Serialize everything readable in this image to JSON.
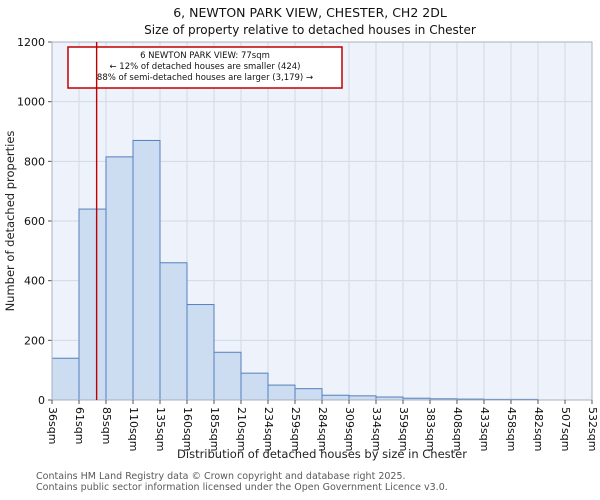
{
  "chart_data": {
    "type": "bar",
    "title": "6, NEWTON PARK VIEW, CHESTER, CH2 2DL",
    "subtitle": "Size of property relative to detached houses in Chester",
    "xlabel": "Distribution of detached houses by size in Chester",
    "ylabel": "Number of detached properties",
    "ylim": [
      0,
      1200
    ],
    "yticks": [
      0,
      200,
      400,
      600,
      800,
      1000,
      1200
    ],
    "grid": true,
    "categories": [
      "36sqm",
      "61sqm",
      "85sqm",
      "110sqm",
      "135sqm",
      "160sqm",
      "185sqm",
      "210sqm",
      "234sqm",
      "259sqm",
      "284sqm",
      "309sqm",
      "334sqm",
      "359sqm",
      "383sqm",
      "408sqm",
      "433sqm",
      "458sqm",
      "482sqm",
      "507sqm",
      "532sqm"
    ],
    "values": [
      140,
      640,
      815,
      870,
      460,
      320,
      160,
      90,
      50,
      38,
      16,
      14,
      10,
      6,
      4,
      3,
      2,
      2,
      0,
      0
    ],
    "marker": {
      "value": 77,
      "label": "6 NEWTON PARK VIEW: 77sqm",
      "color": "#c00000"
    },
    "annotation": {
      "lines": [
        "6 NEWTON PARK VIEW: 77sqm",
        "← 12% of detached houses are smaller (424)",
        "88% of semi-detached houses are larger (3,179) →"
      ]
    },
    "colors": {
      "bar_fill": "#ccdcf1",
      "bar_stroke": "#5580bd",
      "grid": "#d3dae7",
      "plot_bg": "#eef2fa",
      "spine": "#a9b1c0",
      "marker": "#c00000",
      "text": "#111111",
      "axis_label": "#222222"
    }
  },
  "footer": {
    "line1": "Contains HM Land Registry data © Crown copyright and database right 2025.",
    "line2": "Contains public sector information licensed under the Open Government Licence v3.0."
  }
}
